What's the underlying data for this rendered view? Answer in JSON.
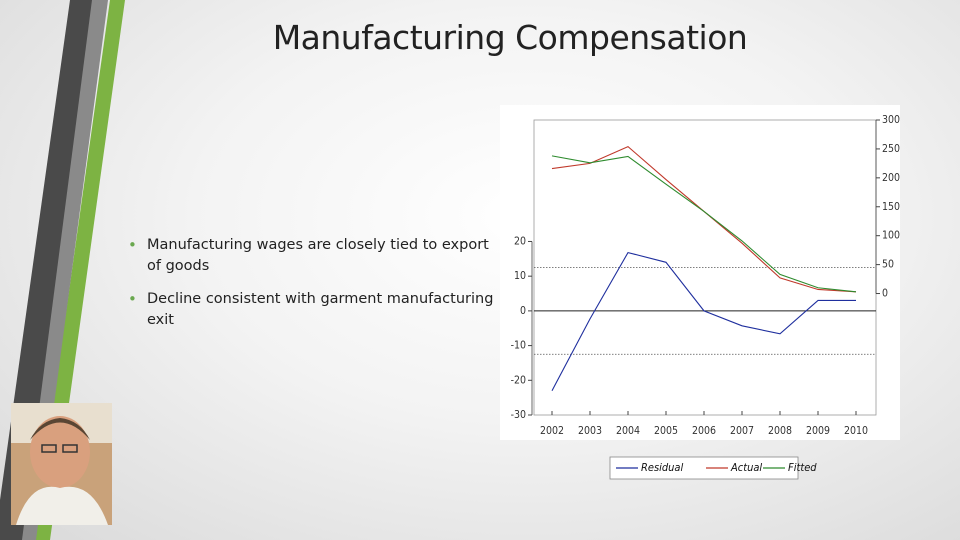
{
  "slide": {
    "title": "Manufacturing Compensation",
    "bullets": [
      "Manufacturing wages are closely tied to export of goods",
      "Decline consistent with garment manufacturing exit"
    ]
  },
  "chart_data": {
    "type": "line",
    "categories": [
      "2002",
      "2003",
      "2004",
      "2005",
      "2006",
      "2007",
      "2008",
      "2009",
      "2010"
    ],
    "series": [
      {
        "name": "Residual",
        "color": "#1f2f9e",
        "axis": "y",
        "values": [
          -23,
          -2.3,
          16.8,
          14,
          0,
          -4.3,
          -6.6,
          3,
          3
        ]
      },
      {
        "name": "Actual",
        "color": "#c0392b",
        "axis": "y2",
        "values": [
          216,
          225,
          254,
          197,
          142,
          87,
          27,
          7,
          3
        ]
      },
      {
        "name": "Fitted",
        "color": "#2e8b2e",
        "axis": "y2",
        "values": [
          238,
          226,
          237,
          189,
          142,
          91,
          33,
          10,
          3
        ]
      }
    ],
    "ylim": [
      -30,
      55
    ],
    "yticks": [
      -30,
      -20,
      -10,
      0,
      10,
      20
    ],
    "y2lim": [
      -210,
      300
    ],
    "y2ticks": [
      0,
      50,
      100,
      150,
      200,
      250,
      300
    ],
    "reference_lines": [
      12.5,
      -12.5
    ],
    "legend": "bottom"
  }
}
